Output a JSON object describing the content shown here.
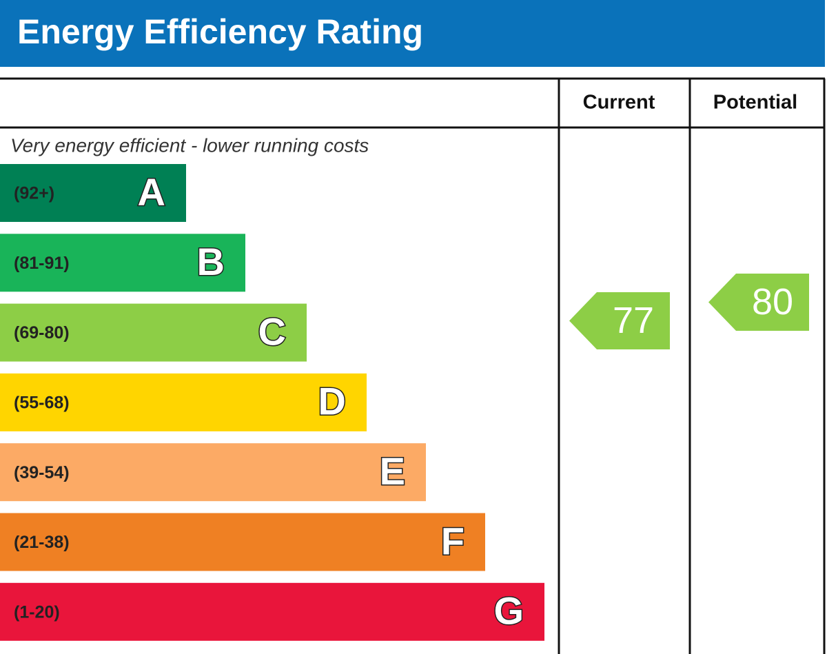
{
  "header": {
    "title": "Energy Efficiency Rating"
  },
  "columns": {
    "current": "Current",
    "potential": "Potential"
  },
  "top_note": "Very energy efficient - lower running costs",
  "bands": [
    {
      "range": "(92+)",
      "letter": "A",
      "color": "#008054"
    },
    {
      "range": "(81-91)",
      "letter": "B",
      "color": "#19b459"
    },
    {
      "range": "(69-80)",
      "letter": "C",
      "color": "#8dce46"
    },
    {
      "range": "(55-68)",
      "letter": "D",
      "color": "#ffd500"
    },
    {
      "range": "(39-54)",
      "letter": "E",
      "color": "#fcaa65"
    },
    {
      "range": "(21-38)",
      "letter": "F",
      "color": "#ef8023"
    },
    {
      "range": "(1-20)",
      "letter": "G",
      "color": "#e9153b"
    }
  ],
  "ratings": {
    "current": 77,
    "potential": 80,
    "color": "#8dce46"
  }
}
